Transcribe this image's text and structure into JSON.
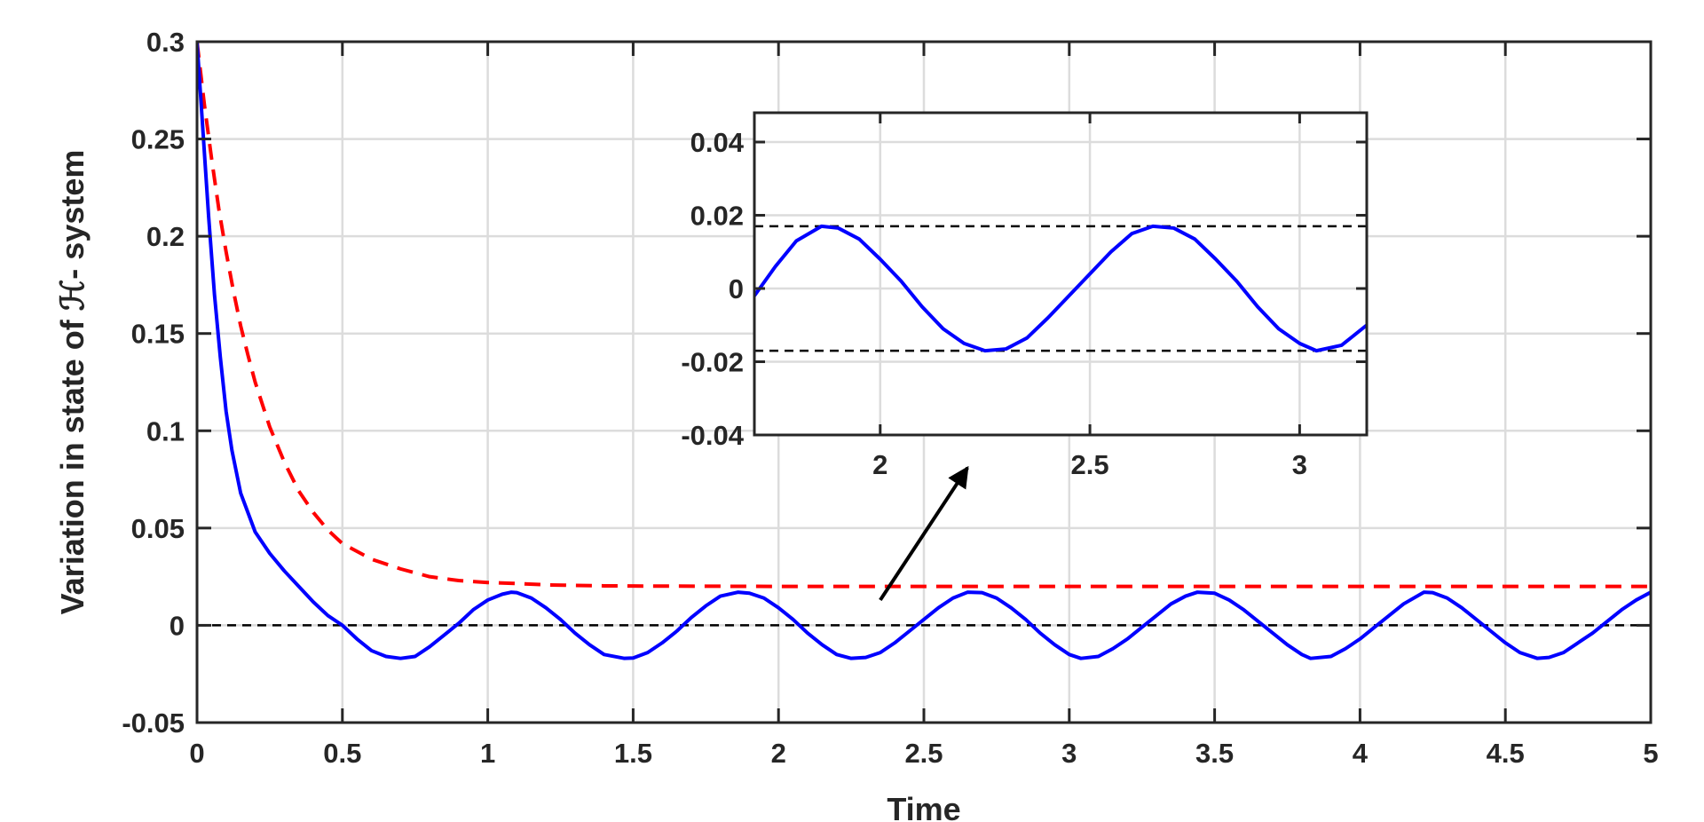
{
  "chart_data": {
    "type": "line",
    "xlabel": "Time",
    "ylabel": "Variation in state of ℋ- system",
    "xlim": [
      0,
      5
    ],
    "ylim": [
      -0.05,
      0.3
    ],
    "xticks": [
      0,
      0.5,
      1,
      1.5,
      2,
      2.5,
      3,
      3.5,
      4,
      4.5,
      5
    ],
    "xtick_labels": [
      "0",
      "0.5",
      "1",
      "1.5",
      "2",
      "2.5",
      "3",
      "3.5",
      "4",
      "4.5",
      "5"
    ],
    "yticks": [
      -0.05,
      0,
      0.05,
      0.1,
      0.15,
      0.2,
      0.25,
      0.3
    ],
    "ytick_labels": [
      "-0.05",
      "0",
      "0.05",
      "0.1",
      "0.15",
      "0.2",
      "0.25",
      "0.3"
    ],
    "grid": true,
    "series": [
      {
        "style": "solid",
        "color": "#0000ff",
        "x": [
          0,
          0.02,
          0.04,
          0.06,
          0.08,
          0.1,
          0.12,
          0.15,
          0.2,
          0.25,
          0.3,
          0.35,
          0.4,
          0.45,
          0.5,
          0.55,
          0.6,
          0.65,
          0.7,
          0.75,
          0.8,
          0.85,
          0.9,
          0.95,
          1.0,
          1.05,
          1.08,
          1.1,
          1.15,
          1.2,
          1.25,
          1.3,
          1.35,
          1.4,
          1.47,
          1.5,
          1.55,
          1.6,
          1.65,
          1.7,
          1.75,
          1.8,
          1.86,
          1.9,
          1.95,
          2.0,
          2.05,
          2.1,
          2.15,
          2.2,
          2.25,
          2.3,
          2.35,
          2.4,
          2.45,
          2.5,
          2.55,
          2.6,
          2.65,
          2.7,
          2.75,
          2.8,
          2.85,
          2.9,
          2.95,
          3.0,
          3.04,
          3.1,
          3.15,
          3.2,
          3.25,
          3.3,
          3.35,
          3.4,
          3.44,
          3.5,
          3.55,
          3.6,
          3.65,
          3.7,
          3.75,
          3.8,
          3.83,
          3.9,
          3.95,
          4.0,
          4.05,
          4.1,
          4.15,
          4.22,
          4.25,
          4.3,
          4.35,
          4.4,
          4.45,
          4.5,
          4.55,
          4.61,
          4.65,
          4.7,
          4.75,
          4.8,
          4.85,
          4.9,
          4.95,
          5.0
        ],
        "y": [
          0.3,
          0.255,
          0.21,
          0.17,
          0.138,
          0.11,
          0.09,
          0.068,
          0.048,
          0.037,
          0.028,
          0.02,
          0.012,
          0.005,
          0.0,
          -0.007,
          -0.013,
          -0.016,
          -0.017,
          -0.016,
          -0.011,
          -0.005,
          0.001,
          0.008,
          0.013,
          0.016,
          0.017,
          0.0168,
          0.014,
          0.009,
          0.003,
          -0.004,
          -0.01,
          -0.015,
          -0.017,
          -0.0168,
          -0.014,
          -0.009,
          -0.003,
          0.004,
          0.01,
          0.015,
          0.017,
          0.0165,
          0.014,
          0.009,
          0.003,
          -0.004,
          -0.01,
          -0.015,
          -0.017,
          -0.0165,
          -0.014,
          -0.009,
          -0.003,
          0.003,
          0.009,
          0.014,
          0.017,
          0.0168,
          0.014,
          0.009,
          0.003,
          -0.004,
          -0.01,
          -0.015,
          -0.017,
          -0.016,
          -0.012,
          -0.007,
          -0.001,
          0.005,
          0.011,
          0.015,
          0.017,
          0.0165,
          0.013,
          0.008,
          0.002,
          -0.004,
          -0.01,
          -0.015,
          -0.017,
          -0.016,
          -0.012,
          -0.007,
          -0.001,
          0.005,
          0.011,
          0.017,
          0.0168,
          0.014,
          0.009,
          0.003,
          -0.003,
          -0.009,
          -0.014,
          -0.017,
          -0.0165,
          -0.014,
          -0.009,
          -0.004,
          0.002,
          0.008,
          0.013,
          0.017
        ]
      },
      {
        "style": "dashed",
        "color": "#ff0000",
        "x": [
          0,
          0.025,
          0.05,
          0.075,
          0.1,
          0.125,
          0.15,
          0.175,
          0.2,
          0.25,
          0.3,
          0.35,
          0.4,
          0.45,
          0.5,
          0.6,
          0.7,
          0.8,
          0.9,
          1.0,
          1.1,
          1.2,
          1.3,
          1.4,
          1.5,
          1.75,
          2.0,
          2.5,
          3.0,
          3.5,
          4.0,
          4.5,
          5.0
        ],
        "y": [
          0.3,
          0.268,
          0.24,
          0.214,
          0.192,
          0.172,
          0.154,
          0.139,
          0.125,
          0.102,
          0.084,
          0.069,
          0.058,
          0.049,
          0.042,
          0.034,
          0.029,
          0.025,
          0.023,
          0.022,
          0.0215,
          0.0208,
          0.0205,
          0.0203,
          0.0202,
          0.0201,
          0.02,
          0.02,
          0.02,
          0.02,
          0.02,
          0.02,
          0.02
        ]
      },
      {
        "style": "dashed",
        "color": "#000000",
        "x": [
          0,
          5
        ],
        "y": [
          0,
          0
        ]
      }
    ],
    "annotations": [
      {
        "type": "arrow",
        "from": [
          2.35,
          0.013
        ],
        "to": [
          2.65,
          0.081
        ]
      }
    ],
    "inset": {
      "xlim": [
        1.7,
        3.16
      ],
      "ylim": [
        -0.04,
        0.048
      ],
      "xticks": [
        2,
        2.5,
        3
      ],
      "xtick_labels": [
        "2",
        "2.5",
        "3"
      ],
      "yticks": [
        -0.04,
        -0.02,
        0,
        0.02,
        0.04
      ],
      "ytick_labels": [
        "-0.04",
        "-0.02",
        "0",
        "0.02",
        "0.04"
      ],
      "grid": true,
      "hlines": [
        0.017,
        -0.017
      ],
      "series": [
        {
          "style": "solid",
          "color": "#0000ff",
          "x": [
            1.7,
            1.75,
            1.8,
            1.86,
            1.9,
            1.95,
            2.0,
            2.05,
            2.1,
            2.15,
            2.2,
            2.25,
            2.3,
            2.35,
            2.4,
            2.45,
            2.5,
            2.55,
            2.6,
            2.65,
            2.7,
            2.75,
            2.8,
            2.85,
            2.9,
            2.95,
            3.0,
            3.04,
            3.1,
            3.16
          ],
          "y": [
            -0.002,
            0.006,
            0.013,
            0.017,
            0.0165,
            0.0135,
            0.008,
            0.002,
            -0.005,
            -0.011,
            -0.015,
            -0.017,
            -0.0165,
            -0.0135,
            -0.008,
            -0.002,
            0.004,
            0.01,
            0.015,
            0.017,
            0.0165,
            0.0135,
            0.008,
            0.002,
            -0.005,
            -0.011,
            -0.015,
            -0.017,
            -0.0155,
            -0.01
          ]
        }
      ]
    }
  }
}
